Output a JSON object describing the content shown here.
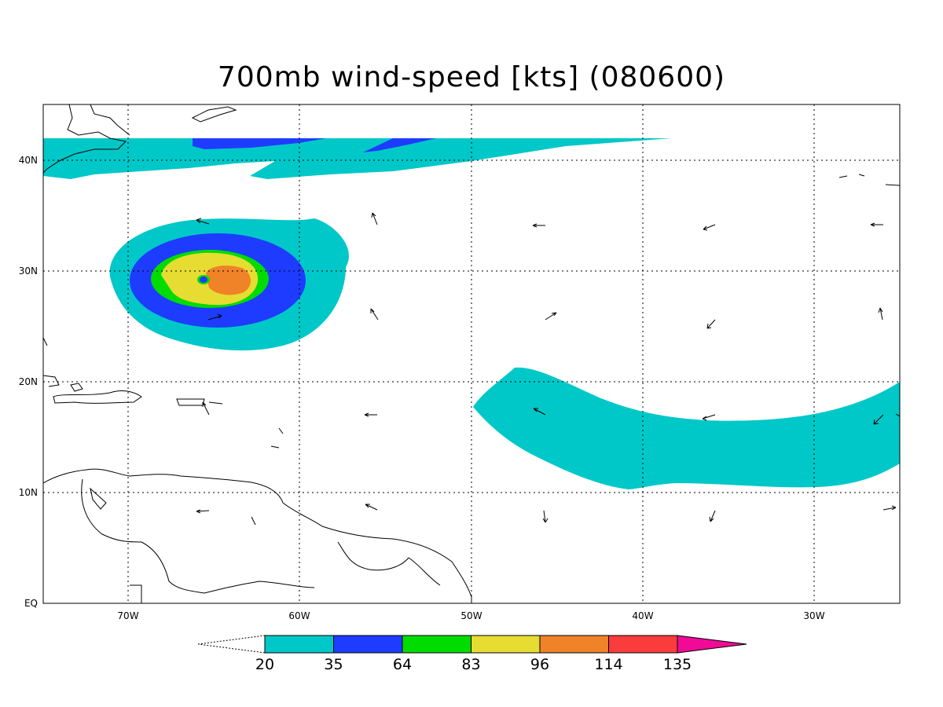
{
  "title": "700mb wind-speed [kts] (080600)",
  "map": {
    "lon_range": [
      -75,
      -25
    ],
    "lat_range": [
      0,
      45
    ],
    "lon_ticks": [
      {
        "value": -70,
        "label": "70W"
      },
      {
        "value": -60,
        "label": "60W"
      },
      {
        "value": -50,
        "label": "50W"
      },
      {
        "value": -40,
        "label": "40W"
      },
      {
        "value": -30,
        "label": "30W"
      }
    ],
    "lat_ticks": [
      {
        "value": 0,
        "label": "EQ"
      },
      {
        "value": 10,
        "label": "10N"
      },
      {
        "value": 20,
        "label": "20N"
      },
      {
        "value": 30,
        "label": "30N"
      },
      {
        "value": 40,
        "label": "40N"
      }
    ],
    "grid": true
  },
  "colorbar": {
    "levels": [
      "20",
      "35",
      "64",
      "83",
      "96",
      "114",
      "135"
    ],
    "colors": [
      "#00c8c8",
      "#1e3cff",
      "#00dc00",
      "#e6dc32",
      "#f08228",
      "#fa3c3c",
      "#f00a96"
    ]
  },
  "shading_colors": {
    "cyan": "#00c8c8",
    "blue": "#1e3cff",
    "green": "#00dc00",
    "yellow": "#e6dc32",
    "orange": "#f08228"
  }
}
